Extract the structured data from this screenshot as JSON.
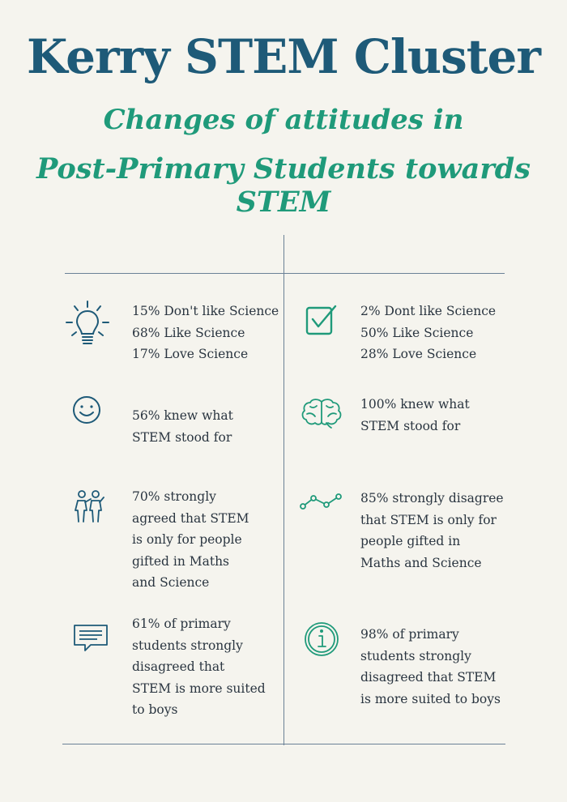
{
  "header": {
    "title": "Kerry STEM Cluster",
    "subtitle_line1": "Changes of attitudes in",
    "subtitle_line2": "Post-Primary Students towards STEM"
  },
  "colors": {
    "title": "#1e5a78",
    "accent": "#1f9a7a",
    "divider": "#6a8196",
    "background": "#f5f4ee"
  },
  "left_column": [
    {
      "icon": "lightbulb-icon",
      "lines": [
        "15% Don't like Science",
        "68% Like Science",
        "17% Love Science"
      ]
    },
    {
      "icon": "smiley-icon",
      "lines": [
        "56% knew what",
        "STEM stood for"
      ]
    },
    {
      "icon": "students-icon",
      "lines": [
        "70% strongly",
        "agreed that STEM",
        "is only for people",
        "gifted in Maths",
        "and Science"
      ]
    },
    {
      "icon": "speech-bubble-icon",
      "lines": [
        "61% of primary",
        "students strongly",
        "disagreed that",
        "STEM is more suited",
        "to boys"
      ]
    }
  ],
  "right_column": [
    {
      "icon": "checkbox-icon",
      "lines": [
        "2% Dont like Science",
        "50% Like Science",
        "28% Love Science"
      ]
    },
    {
      "icon": "brain-icon",
      "lines": [
        "100% knew what",
        "STEM stood for"
      ]
    },
    {
      "icon": "line-graph-icon",
      "lines": [
        "85% strongly disagree",
        "that STEM is only for",
        "people gifted in",
        "Maths and Science"
      ]
    },
    {
      "icon": "info-icon",
      "lines": [
        "98% of primary",
        "students strongly",
        "disagreed that STEM",
        "is more suited to boys"
      ]
    }
  ]
}
